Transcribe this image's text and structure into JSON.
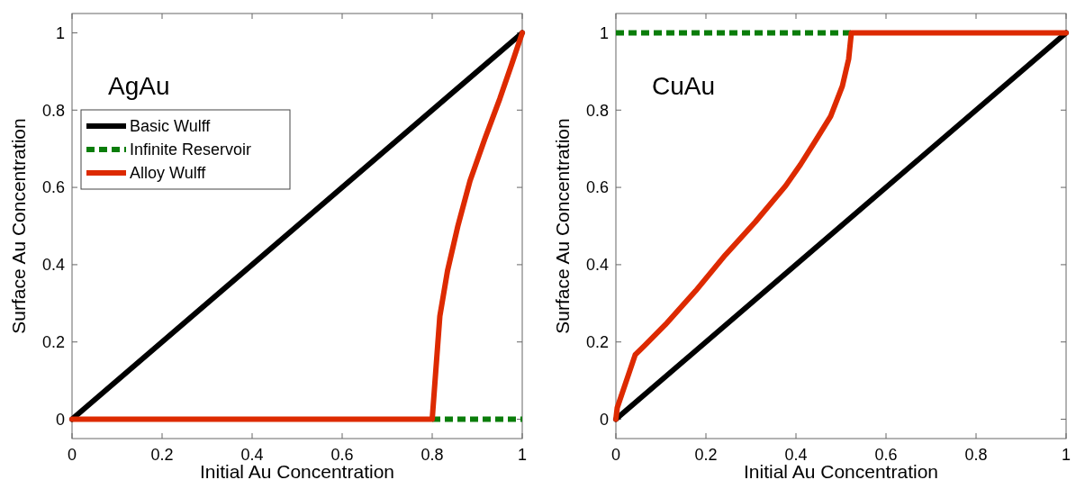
{
  "chart_data": [
    {
      "type": "line",
      "xlabel": "Initial Au Concentration",
      "ylabel": "Surface Au Concentration",
      "annotations": [
        "AgAu"
      ],
      "xlim": [
        0,
        1
      ],
      "ylim": [
        -0.05,
        1.05
      ],
      "xticks": [
        0,
        0.2,
        0.4,
        0.6,
        0.8,
        1
      ],
      "yticks": [
        0,
        0.2,
        0.4,
        0.6,
        0.8,
        1
      ],
      "legend": "top left",
      "series": [
        {
          "name": "Basic Wulff",
          "color": "#000000",
          "line_style": "solid",
          "x": [
            0,
            1
          ],
          "values": [
            0,
            1
          ]
        },
        {
          "name": "Infinite Reservoir",
          "color": "#0a7d0a",
          "line_style": "dashed",
          "x": [
            0.8,
            1
          ],
          "values": [
            0,
            0
          ]
        },
        {
          "name": "Alloy Wulff",
          "color": "#dd2a00",
          "line_style": "solid",
          "x": [
            0,
            0.8,
            0.807,
            0.817,
            0.834,
            0.857,
            0.884,
            0.917,
            0.95,
            0.977,
            1
          ],
          "values": [
            0,
            0,
            0.11,
            0.267,
            0.384,
            0.5,
            0.617,
            0.726,
            0.829,
            0.92,
            1
          ]
        }
      ]
    },
    {
      "type": "line",
      "xlabel": "Initial Au Concentration",
      "ylabel": "Surface Au Concentration",
      "annotations": [
        "CuAu"
      ],
      "xlim": [
        0,
        1
      ],
      "ylim": [
        -0.05,
        1.05
      ],
      "xticks": [
        0,
        0.2,
        0.4,
        0.6,
        0.8,
        1
      ],
      "yticks": [
        0,
        0.2,
        0.4,
        0.6,
        0.8,
        1
      ],
      "series": [
        {
          "color": "#000000",
          "line_style": "solid",
          "x": [
            0,
            1
          ],
          "values": [
            0,
            1
          ]
        },
        {
          "color": "#0a7d0a",
          "line_style": "dashed",
          "x": [
            0,
            0.523
          ],
          "values": [
            1,
            1
          ]
        },
        {
          "color": "#dd2a00",
          "line_style": "solid",
          "x": [
            0,
            0.003,
            0.043,
            0.063,
            0.11,
            0.177,
            0.243,
            0.31,
            0.377,
            0.41,
            0.443,
            0.477,
            0.503,
            0.517,
            0.523,
            1
          ],
          "values": [
            0,
            0.03,
            0.167,
            0.19,
            0.245,
            0.332,
            0.425,
            0.511,
            0.604,
            0.659,
            0.72,
            0.784,
            0.862,
            0.932,
            1,
            1
          ]
        }
      ]
    }
  ]
}
